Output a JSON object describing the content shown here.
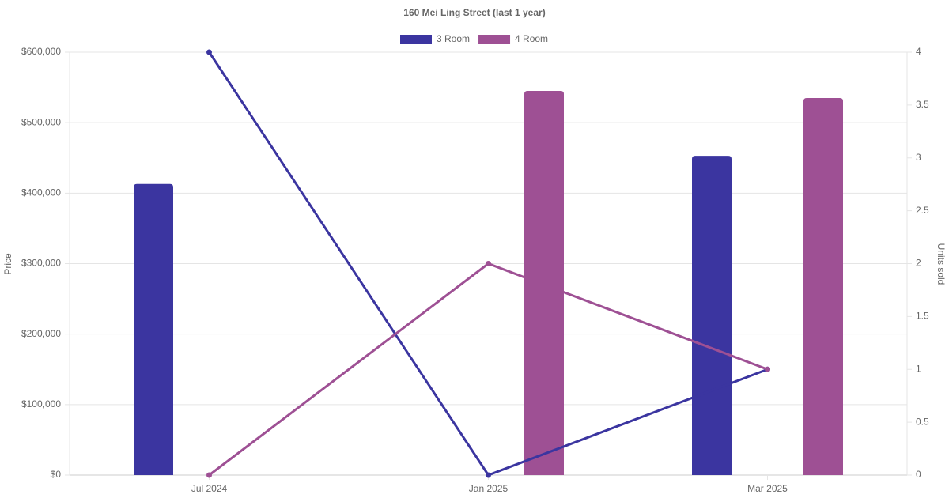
{
  "chart_data": {
    "type": "bar-line",
    "title": "160 Mei Ling Street (last 1 year)",
    "y_label": "Price",
    "y2_label": "Units sold",
    "categories": [
      "Jul 2024",
      "Jan 2025",
      "Mar 2025"
    ],
    "series": [
      {
        "name": "3 Room",
        "color": "#3b35a0",
        "values": [
          413000,
          null,
          453000
        ],
        "units_sold": [
          4,
          0,
          1
        ]
      },
      {
        "name": "4 Room",
        "color": "#9e5094",
        "values": [
          null,
          545000,
          535000
        ],
        "units_sold": [
          0,
          2,
          1
        ]
      }
    ],
    "ylim": [
      0,
      600000
    ],
    "yticks": [
      {
        "value": 0,
        "label": "$0"
      },
      {
        "value": 100000,
        "label": "$100,000"
      },
      {
        "value": 200000,
        "label": "$200,000"
      },
      {
        "value": 300000,
        "label": "$300,000"
      },
      {
        "value": 400000,
        "label": "$400,000"
      },
      {
        "value": 500000,
        "label": "$500,000"
      },
      {
        "value": 600000,
        "label": "$600,000"
      }
    ],
    "y2lim": [
      0,
      4
    ],
    "y2ticks": [
      0,
      0.5,
      1,
      1.5,
      2,
      2.5,
      3,
      3.5,
      4
    ],
    "grid": true,
    "legend": "top"
  }
}
